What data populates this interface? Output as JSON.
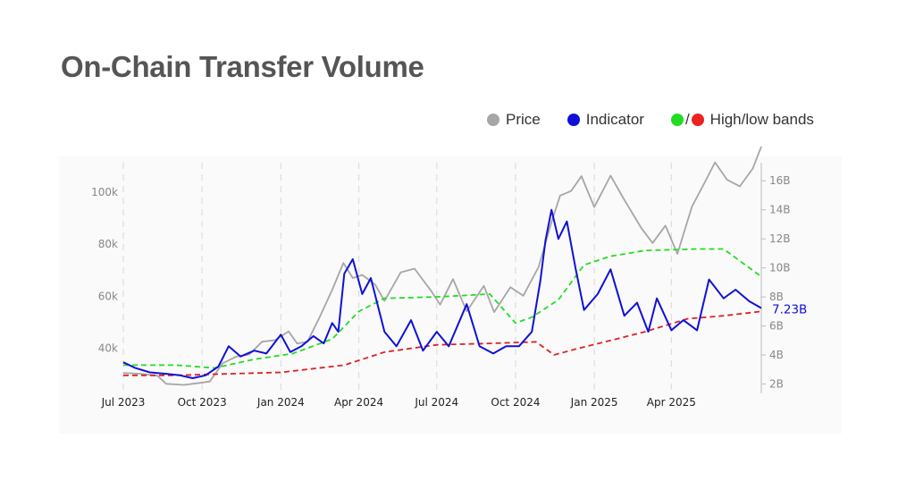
{
  "title": "On-Chain Transfer Volume",
  "legend": {
    "price_label": "Price",
    "indicator_label": "Indicator",
    "bands_label": "High/low bands",
    "slash": "/"
  },
  "colors": {
    "price": "#a6a6a6",
    "indicator": "#1010d8",
    "high_band": "#22dd22",
    "low_band": "#dd2222",
    "grid": "#dddddd",
    "tick_text": "#888888",
    "title": "#555555"
  },
  "chart_data": {
    "type": "line",
    "title": "On-Chain Transfer Volume",
    "x_ticks": [
      "Jul 2023",
      "Oct 2023",
      "Jan 2024",
      "Apr 2024",
      "Jul 2024",
      "Oct 2024",
      "Jan 2025",
      "Apr 2025"
    ],
    "x_range": [
      "2023-07-01",
      "2025-07-15"
    ],
    "y_left": {
      "ticks": [
        "40k",
        "60k",
        "80k",
        "100k"
      ],
      "values": [
        40000,
        60000,
        80000,
        100000
      ],
      "range": [
        24000,
        110000
      ]
    },
    "y_right": {
      "ticks": [
        "2B",
        "4B",
        "6B",
        "8B",
        "10B",
        "12B",
        "14B",
        "16B"
      ],
      "values": [
        2,
        4,
        6,
        8,
        10,
        12,
        14,
        16
      ],
      "range": [
        1.6,
        17.0
      ],
      "unit": "B"
    },
    "last_value_label": "7.23B",
    "grid": "vertical-dashed",
    "series": [
      {
        "name": "Price",
        "axis": "left",
        "points": [
          [
            "2023-07-01",
            30500
          ],
          [
            "2023-07-20",
            30200
          ],
          [
            "2023-08-10",
            29400
          ],
          [
            "2023-08-20",
            26300
          ],
          [
            "2023-09-10",
            25900
          ],
          [
            "2023-09-25",
            26500
          ],
          [
            "2023-10-10",
            27200
          ],
          [
            "2023-10-25",
            34200
          ],
          [
            "2023-11-10",
            36800
          ],
          [
            "2023-11-25",
            37600
          ],
          [
            "2023-12-10",
            42500
          ],
          [
            "2023-12-25",
            43100
          ],
          [
            "2024-01-10",
            46500
          ],
          [
            "2024-01-20",
            41800
          ],
          [
            "2024-02-01",
            42500
          ],
          [
            "2024-02-15",
            51800
          ],
          [
            "2024-03-01",
            62500
          ],
          [
            "2024-03-14",
            72800
          ],
          [
            "2024-03-25",
            67000
          ],
          [
            "2024-04-05",
            68200
          ],
          [
            "2024-04-20",
            64500
          ],
          [
            "2024-05-01",
            58200
          ],
          [
            "2024-05-20",
            69200
          ],
          [
            "2024-06-05",
            70600
          ],
          [
            "2024-06-25",
            61800
          ],
          [
            "2024-07-05",
            56800
          ],
          [
            "2024-07-20",
            66600
          ],
          [
            "2024-08-05",
            54200
          ],
          [
            "2024-08-25",
            64000
          ],
          [
            "2024-09-06",
            53900
          ],
          [
            "2024-09-25",
            63500
          ],
          [
            "2024-10-10",
            60200
          ],
          [
            "2024-10-28",
            71300
          ],
          [
            "2024-11-12",
            88500
          ],
          [
            "2024-11-22",
            98700
          ],
          [
            "2024-12-05",
            100500
          ],
          [
            "2024-12-17",
            106200
          ],
          [
            "2025-01-01",
            94300
          ],
          [
            "2025-01-20",
            106400
          ],
          [
            "2025-02-05",
            97100
          ],
          [
            "2025-02-25",
            86200
          ],
          [
            "2025-03-10",
            80500
          ],
          [
            "2025-03-25",
            87200
          ],
          [
            "2025-04-08",
            76300
          ],
          [
            "2025-04-25",
            94500
          ],
          [
            "2025-05-10",
            103800
          ],
          [
            "2025-05-22",
            111500
          ],
          [
            "2025-06-05",
            104800
          ],
          [
            "2025-06-20",
            102300
          ],
          [
            "2025-07-05",
            109100
          ],
          [
            "2025-07-15",
            117600
          ]
        ]
      },
      {
        "name": "Indicator",
        "axis": "right",
        "points": [
          [
            "2023-07-01",
            3.5
          ],
          [
            "2023-07-15",
            3.1
          ],
          [
            "2023-08-01",
            2.8
          ],
          [
            "2023-08-20",
            2.7
          ],
          [
            "2023-09-05",
            2.6
          ],
          [
            "2023-09-20",
            2.4
          ],
          [
            "2023-10-05",
            2.6
          ],
          [
            "2023-10-20",
            3.2
          ],
          [
            "2023-11-01",
            4.6
          ],
          [
            "2023-11-15",
            3.9
          ],
          [
            "2023-12-01",
            4.3
          ],
          [
            "2023-12-15",
            4.1
          ],
          [
            "2024-01-01",
            5.4
          ],
          [
            "2024-01-12",
            4.2
          ],
          [
            "2024-01-25",
            4.6
          ],
          [
            "2024-02-08",
            5.3
          ],
          [
            "2024-02-20",
            4.8
          ],
          [
            "2024-03-01",
            6.2
          ],
          [
            "2024-03-08",
            5.6
          ],
          [
            "2024-03-15",
            9.6
          ],
          [
            "2024-03-25",
            10.6
          ],
          [
            "2024-04-05",
            8.2
          ],
          [
            "2024-04-15",
            9.3
          ],
          [
            "2024-05-01",
            5.6
          ],
          [
            "2024-05-15",
            4.6
          ],
          [
            "2024-06-01",
            6.4
          ],
          [
            "2024-06-15",
            4.3
          ],
          [
            "2024-07-01",
            5.6
          ],
          [
            "2024-07-15",
            4.6
          ],
          [
            "2024-08-05",
            7.5
          ],
          [
            "2024-08-20",
            4.6
          ],
          [
            "2024-09-05",
            4.1
          ],
          [
            "2024-09-20",
            4.6
          ],
          [
            "2024-10-05",
            4.6
          ],
          [
            "2024-10-20",
            5.6
          ],
          [
            "2024-10-30",
            9.1
          ],
          [
            "2024-11-05",
            11.9
          ],
          [
            "2024-11-12",
            14.0
          ],
          [
            "2024-11-20",
            12.0
          ],
          [
            "2024-11-30",
            13.2
          ],
          [
            "2024-12-10",
            10.0
          ],
          [
            "2024-12-20",
            7.1
          ],
          [
            "2025-01-05",
            8.2
          ],
          [
            "2025-01-20",
            9.9
          ],
          [
            "2025-02-05",
            6.7
          ],
          [
            "2025-02-20",
            7.6
          ],
          [
            "2025-03-05",
            5.6
          ],
          [
            "2025-03-15",
            7.9
          ],
          [
            "2025-04-01",
            5.7
          ],
          [
            "2025-04-15",
            6.4
          ],
          [
            "2025-05-01",
            5.7
          ],
          [
            "2025-05-15",
            9.2
          ],
          [
            "2025-06-01",
            7.9
          ],
          [
            "2025-06-15",
            8.5
          ],
          [
            "2025-07-01",
            7.7
          ],
          [
            "2025-07-15",
            7.23
          ]
        ]
      },
      {
        "name": "High band",
        "axis": "right",
        "points": [
          [
            "2023-07-01",
            3.3
          ],
          [
            "2023-09-01",
            3.3
          ],
          [
            "2023-10-15",
            3.1
          ],
          [
            "2023-12-01",
            3.7
          ],
          [
            "2024-01-15",
            4.1
          ],
          [
            "2024-03-01",
            5.1
          ],
          [
            "2024-04-01",
            7.0
          ],
          [
            "2024-05-01",
            7.9
          ],
          [
            "2024-07-01",
            8.0
          ],
          [
            "2024-09-01",
            8.2
          ],
          [
            "2024-10-01",
            6.2
          ],
          [
            "2024-10-20",
            6.6
          ],
          [
            "2024-11-20",
            7.8
          ],
          [
            "2024-12-20",
            10.2
          ],
          [
            "2025-01-20",
            10.8
          ],
          [
            "2025-03-01",
            11.2
          ],
          [
            "2025-05-01",
            11.3
          ],
          [
            "2025-06-01",
            11.3
          ],
          [
            "2025-07-15",
            9.4
          ]
        ]
      },
      {
        "name": "Low band",
        "axis": "right",
        "points": [
          [
            "2023-07-01",
            2.6
          ],
          [
            "2023-09-01",
            2.6
          ],
          [
            "2023-11-01",
            2.7
          ],
          [
            "2024-01-01",
            2.8
          ],
          [
            "2024-03-15",
            3.3
          ],
          [
            "2024-05-01",
            4.2
          ],
          [
            "2024-07-01",
            4.7
          ],
          [
            "2024-09-01",
            4.8
          ],
          [
            "2024-10-25",
            4.9
          ],
          [
            "2024-11-15",
            4.0
          ],
          [
            "2024-12-10",
            4.4
          ],
          [
            "2025-01-20",
            5.0
          ],
          [
            "2025-03-01",
            5.6
          ],
          [
            "2025-04-20",
            6.5
          ],
          [
            "2025-06-01",
            6.7
          ],
          [
            "2025-07-15",
            7.0
          ]
        ]
      }
    ]
  }
}
